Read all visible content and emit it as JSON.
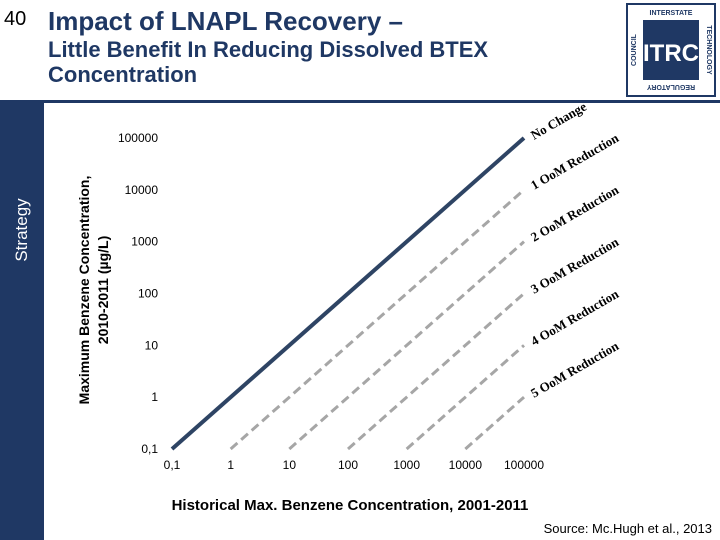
{
  "slide": {
    "number": "40"
  },
  "title": {
    "line1": "Impact of LNAPL Recovery –",
    "line2": "Little Benefit In Reducing Dissolved BTEX Concentration"
  },
  "sidebar": {
    "label": "Strategy"
  },
  "logo": {
    "top_text": "INTERSTATE",
    "left_text": "COUNCIL",
    "right_text": "TECHNOLOGY",
    "bottom_text": "REGULATORY",
    "center_text": "ITRC"
  },
  "source": "Source: Mc.Hugh et al., 2013",
  "colors": {
    "navy": "#1f3864",
    "sidebar": "#1f3864",
    "line_main": "#2e4464",
    "line_gray": "#a6a6a6"
  },
  "chart_data": {
    "type": "line",
    "scale": "log-log",
    "xlabel": "Historical Max. Benzene Concentration, 2001-2011",
    "ylabel_line1": "Maximum Benzene Concentration,",
    "ylabel_line2": "2010-2011 (µg/L)",
    "xlim": [
      0.1,
      100000
    ],
    "ylim": [
      0.1,
      100000
    ],
    "x_ticks": [
      "0,1",
      "1",
      "10",
      "100",
      "1000",
      "10000",
      "100000"
    ],
    "y_ticks": [
      "0,1",
      "1",
      "10",
      "100",
      "1000",
      "10000",
      "100000"
    ],
    "series": [
      {
        "name": "No Change",
        "x": [
          0.1,
          100000
        ],
        "y": [
          0.1,
          100000
        ],
        "style": "solid"
      },
      {
        "name": "1 OoM Reduction",
        "x": [
          1,
          100000
        ],
        "y": [
          0.1,
          10000
        ],
        "style": "dashed"
      },
      {
        "name": "2 OoM Reduction",
        "x": [
          10,
          100000
        ],
        "y": [
          0.1,
          1000
        ],
        "style": "dashed"
      },
      {
        "name": "3 OoM Reduction",
        "x": [
          100,
          100000
        ],
        "y": [
          0.1,
          100
        ],
        "style": "dashed"
      },
      {
        "name": "4 OoM Reduction",
        "x": [
          1000,
          100000
        ],
        "y": [
          0.1,
          10
        ],
        "style": "dashed"
      },
      {
        "name": "5 OoM Reduction",
        "x": [
          10000,
          100000
        ],
        "y": [
          0.1,
          1
        ],
        "style": "dashed"
      }
    ],
    "series_labels": [
      {
        "series": 0,
        "prefix": "No",
        "text": "Change"
      },
      {
        "series": 1,
        "prefix": "1",
        "text": "OoM Reduction"
      },
      {
        "series": 2,
        "prefix": "2",
        "text": "OoM Reduction"
      },
      {
        "series": 3,
        "prefix": "3",
        "text": "OoM Reduction"
      },
      {
        "series": 4,
        "prefix": "4",
        "text": "OoM Reduction"
      },
      {
        "series": 5,
        "prefix": "5",
        "text": "OoM Reduction"
      }
    ]
  }
}
